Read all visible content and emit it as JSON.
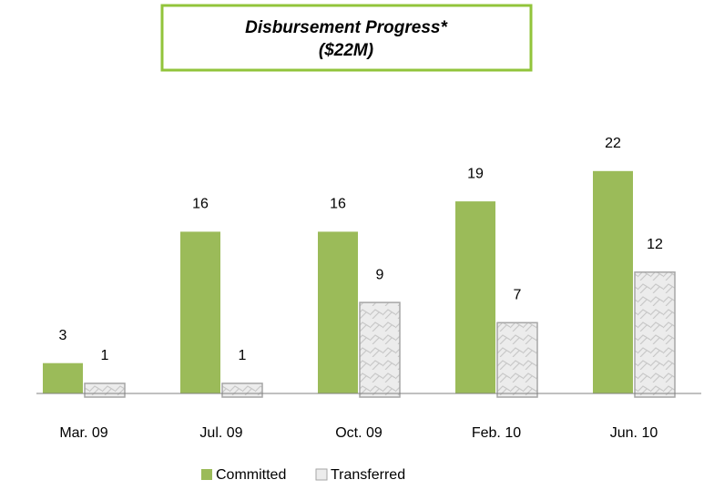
{
  "chart_data": {
    "type": "bar",
    "title": "Disbursement Progress*",
    "subtitle": "($22M)",
    "categories": [
      "Mar. 09",
      "Jul. 09",
      "Oct. 09",
      "Feb. 10",
      "Jun. 10"
    ],
    "series": [
      {
        "name": "Committed",
        "color": "#9bbb59",
        "values": [
          3,
          16,
          16,
          19,
          22
        ]
      },
      {
        "name": "Transferred",
        "color": "#e6e6e6",
        "values": [
          1,
          1,
          9,
          7,
          12
        ]
      }
    ]
  }
}
